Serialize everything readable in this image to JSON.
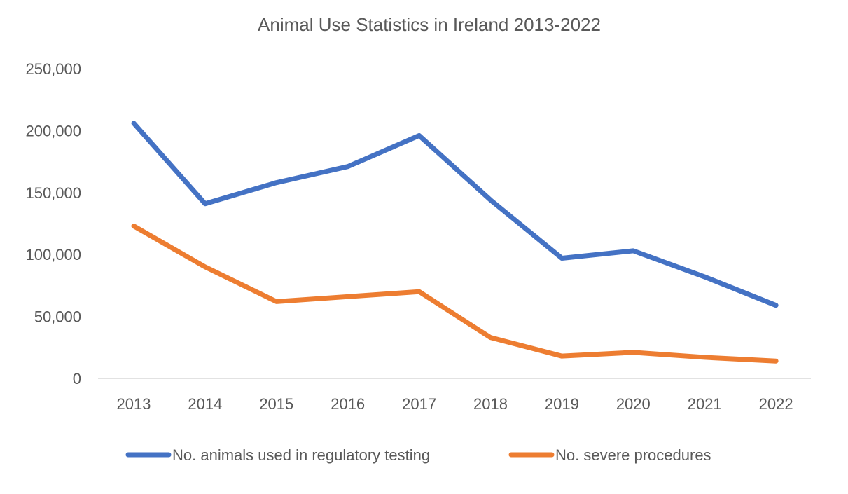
{
  "chart_data": {
    "type": "line",
    "title": "Animal Use Statistics in Ireland 2013-2022",
    "xlabel": "",
    "ylabel": "",
    "categories": [
      "2013",
      "2014",
      "2015",
      "2016",
      "2017",
      "2018",
      "2019",
      "2020",
      "2021",
      "2022"
    ],
    "ylim": [
      0,
      250000
    ],
    "yticks": [
      "0",
      "50,000",
      "100,000",
      "150,000",
      "200,000",
      "250,000"
    ],
    "grid": false,
    "legend_position": "bottom",
    "series": [
      {
        "name": "No. animals used in regulatory testing",
        "color": "#4472C4",
        "values": [
          206000,
          141000,
          158000,
          171000,
          196000,
          144000,
          97000,
          103000,
          82000,
          59000
        ]
      },
      {
        "name": "No. severe procedures",
        "color": "#ED7D31",
        "values": [
          123000,
          90000,
          62000,
          66000,
          70000,
          33000,
          18000,
          21000,
          17000,
          14000
        ]
      }
    ]
  }
}
